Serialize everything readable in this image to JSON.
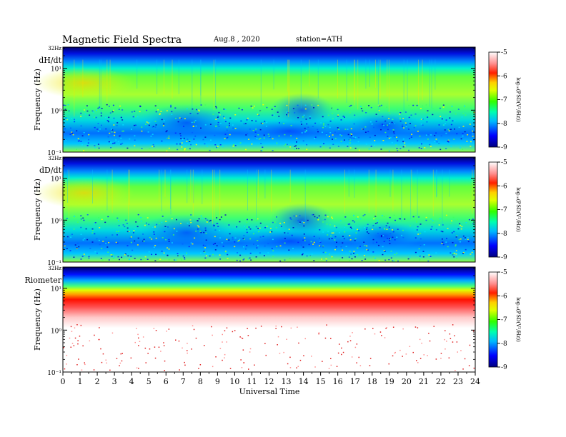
{
  "header": {
    "title": "Magnetic  Field  Spectra",
    "date": "Aug.8  , 2020",
    "station": "station=ATH"
  },
  "chart_data": [
    {
      "type": "heatmap",
      "panel_label": "dH/dt",
      "ylabel": "Frequency  (Hz)",
      "top_freq_label": "32Hz",
      "y_tick_labels": [
        "10¹",
        "10⁰",
        "10⁻¹"
      ],
      "y_scale": "log",
      "colorbar_ticks": [
        "-5",
        "-6",
        "-7",
        "-8",
        "-9"
      ],
      "colorbar_label": "log₁₀(PSD(V²/Hz))",
      "colorbar_range": [
        -9,
        -5
      ]
    },
    {
      "type": "heatmap",
      "panel_label": "dD/dt",
      "ylabel": "Frequency  (Hz)",
      "top_freq_label": "32Hz",
      "y_tick_labels": [
        "10¹",
        "10⁰",
        "10⁻¹"
      ],
      "y_scale": "log",
      "colorbar_ticks": [
        "-5",
        "-6",
        "-7",
        "-8",
        "-9"
      ],
      "colorbar_label": "log₁₀(PSD(V²/Hz))",
      "colorbar_range": [
        -9,
        -5
      ]
    },
    {
      "type": "heatmap",
      "panel_label": "Riometer",
      "ylabel": "Frequency  (Hz)",
      "top_freq_label": "32Hz",
      "y_tick_labels": [
        "10¹",
        "10⁰",
        "10⁻¹"
      ],
      "y_scale": "log",
      "colorbar_ticks": [
        "-5",
        "-6",
        "-7",
        "-8",
        "-9"
      ],
      "colorbar_label": "log₁₀(PSD(V²/Hz))",
      "colorbar_range": [
        -9,
        -5
      ]
    }
  ],
  "x_axis": {
    "xlabel": "Universal Time",
    "ticks": [
      "0",
      "1",
      "2",
      "3",
      "4",
      "5",
      "6",
      "7",
      "8",
      "9",
      "10",
      "11",
      "12",
      "13",
      "14",
      "15",
      "16",
      "17",
      "18",
      "19",
      "20",
      "21",
      "22",
      "23",
      "24"
    ],
    "range": [
      0,
      24
    ]
  }
}
